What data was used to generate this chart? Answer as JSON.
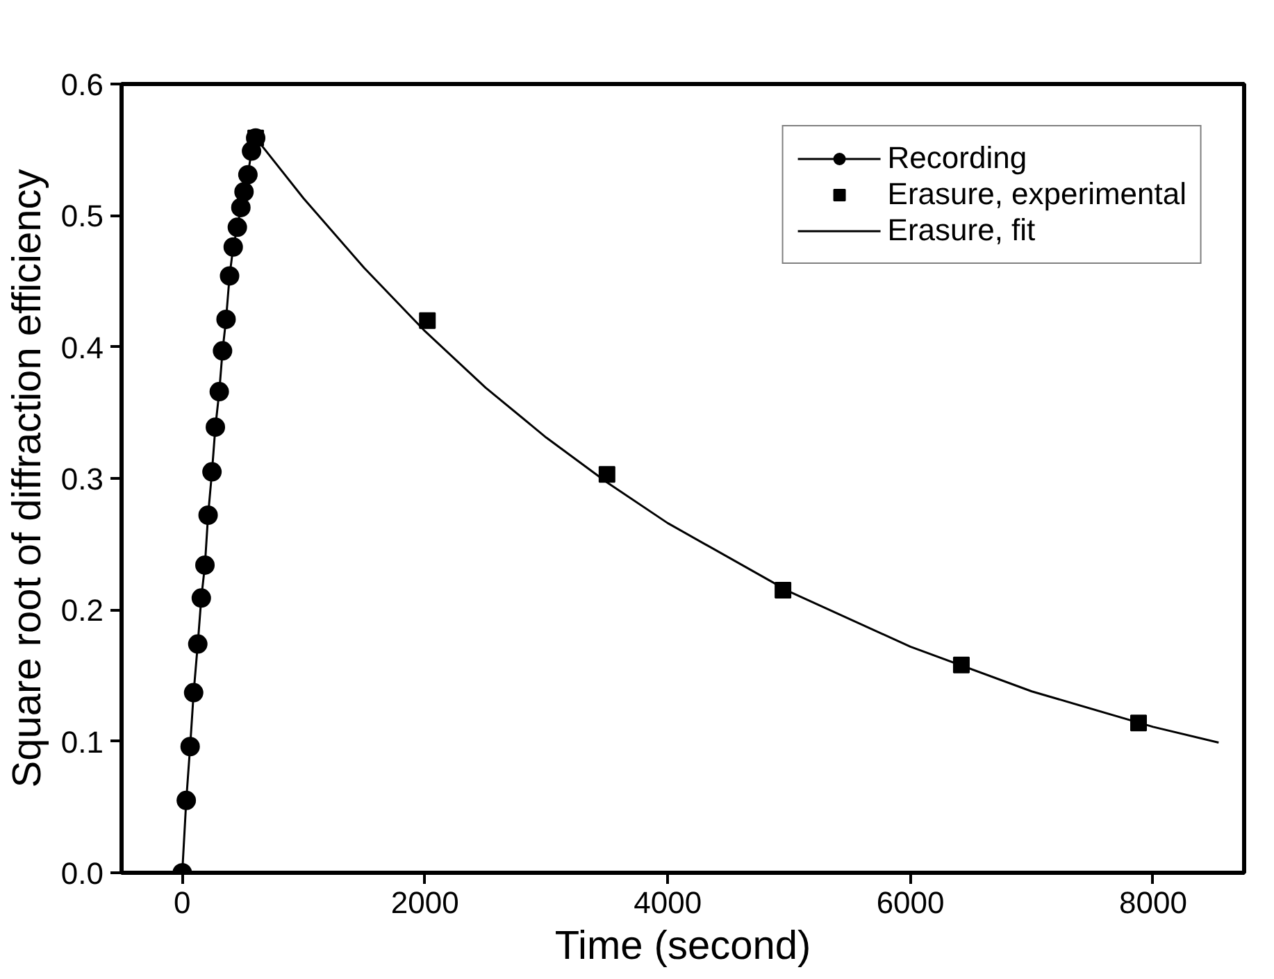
{
  "chart_data": {
    "type": "line",
    "xlabel": "Time (second)",
    "ylabel": "Square root of diffraction efficiency",
    "xlim": [
      -500,
      8750
    ],
    "ylim": [
      0,
      0.6
    ],
    "xticks": [
      0,
      2000,
      4000,
      6000,
      8000
    ],
    "yticks": [
      {
        "value": 0,
        "label": "0.0"
      },
      {
        "value": 0.1,
        "label": "0.1"
      },
      {
        "value": 0.2,
        "label": "0.2"
      },
      {
        "value": 0.3,
        "label": "0.3"
      },
      {
        "value": 0.4,
        "label": "0.4"
      },
      {
        "value": 0.5,
        "label": "0.5"
      },
      {
        "value": 0.6,
        "label": "0.6"
      }
    ],
    "grid": false,
    "legend": "top right",
    "series": [
      {
        "name": "Recording",
        "marker": "circle",
        "color": "#000000",
        "x": [
          0,
          33,
          65,
          94,
          128,
          157,
          187,
          213,
          245,
          273,
          305,
          332,
          361,
          390,
          420,
          454,
          483,
          509,
          541,
          571,
          605
        ],
        "values": [
          0,
          0.055,
          0.096,
          0.137,
          0.174,
          0.209,
          0.234,
          0.272,
          0.305,
          0.339,
          0.366,
          0.397,
          0.421,
          0.454,
          0.476,
          0.491,
          0.506,
          0.518,
          0.531,
          0.549,
          0.559
        ]
      },
      {
        "name": "Erasure, experimental",
        "type": "scatter",
        "marker": "square",
        "color": "#000000",
        "x": [
          605,
          2020,
          3500,
          4950,
          6420,
          7880
        ],
        "values": [
          0.559,
          0.42,
          0.303,
          0.215,
          0.158,
          0.114
        ]
      },
      {
        "name": "Erasure, fit",
        "marker": "none",
        "color": "#000000",
        "x": [
          605,
          1000,
          1500,
          2000,
          2500,
          3000,
          3500,
          4000,
          5000,
          6000,
          7000,
          8000,
          8540
        ],
        "values": [
          0.559,
          0.513,
          0.46,
          0.412,
          0.369,
          0.331,
          0.297,
          0.266,
          0.214,
          0.172,
          0.138,
          0.111,
          0.099
        ]
      }
    ]
  }
}
